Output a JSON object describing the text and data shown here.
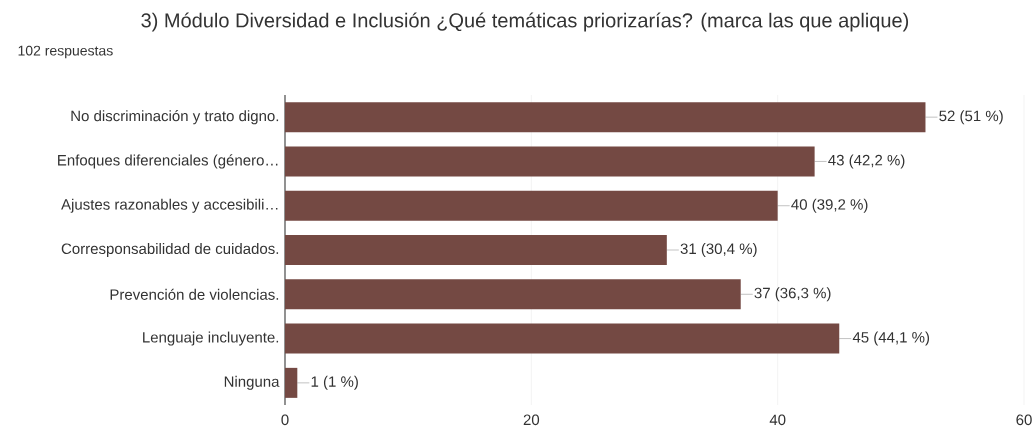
{
  "chart_data": {
    "type": "bar",
    "orientation": "horizontal",
    "title": "3) Módulo Diversidad e Inclusión  ¿Qué temáticas priorizarías? (marca las que aplique)",
    "subtitle": "102 respuestas",
    "categories": [
      "No discriminación y trato digno.",
      "Enfoques diferenciales (género…",
      "Ajustes razonables y accesibili…",
      "Corresponsabilidad de cuidados.",
      "Prevención de violencias.",
      "Lenguaje incluyente.",
      "Ninguna"
    ],
    "values": [
      52,
      43,
      40,
      31,
      37,
      45,
      1
    ],
    "value_labels": [
      "52 (51 %)",
      "43 (42,2 %)",
      "40 (39,2 %)",
      "31 (30,4 %)",
      "37 (36,3 %)",
      "45 (44,1 %)",
      "1 (1 %)"
    ],
    "color": "#744943",
    "xlim": [
      0,
      60
    ],
    "xticks": [
      0,
      20,
      40,
      60
    ],
    "grid": "x"
  }
}
